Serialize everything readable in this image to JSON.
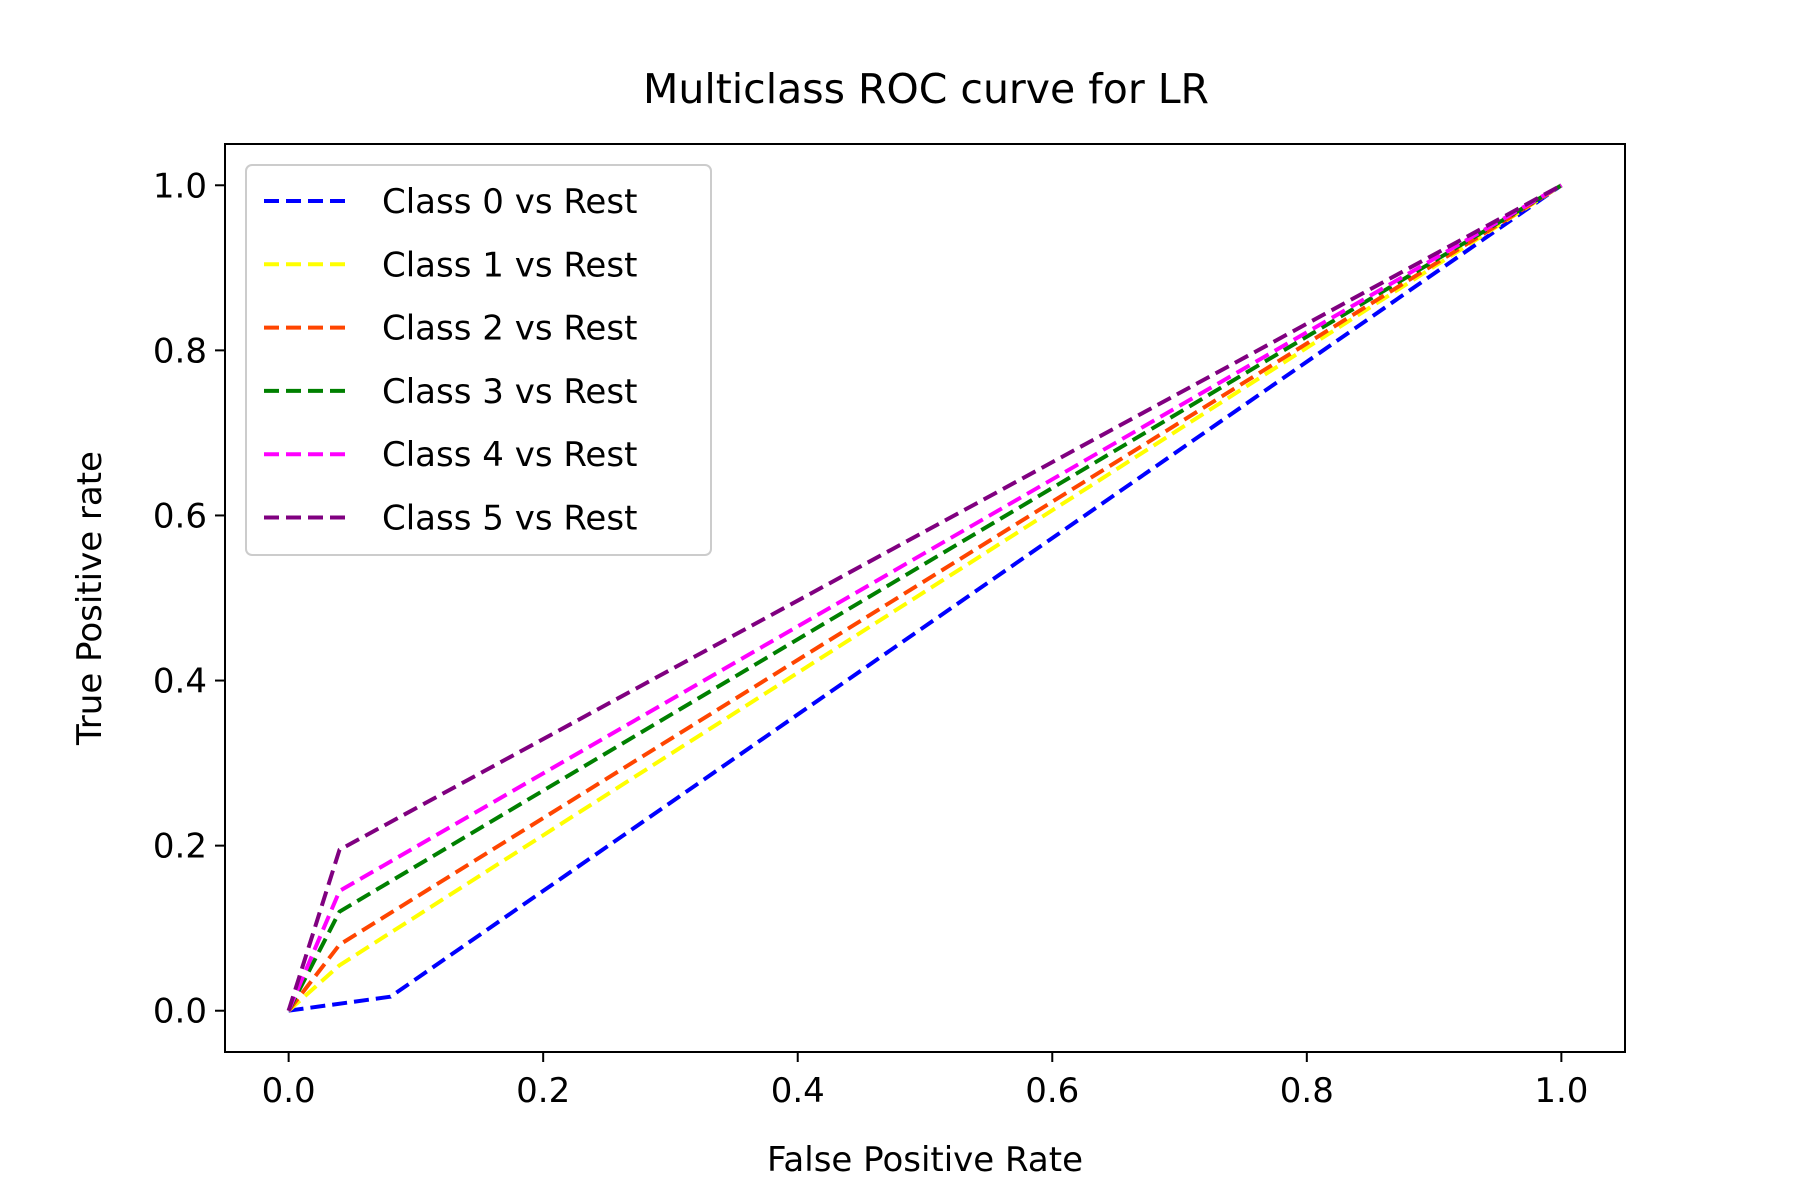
{
  "chart_data": {
    "type": "line",
    "title": "Multiclass ROC curve for LR",
    "xlabel": "False Positive Rate",
    "ylabel": "True Positive rate",
    "xlim": [
      -0.05,
      1.05
    ],
    "ylim": [
      -0.05,
      1.05
    ],
    "x_ticks": [
      0.0,
      0.2,
      0.4,
      0.6,
      0.8,
      1.0
    ],
    "y_ticks": [
      0.0,
      0.2,
      0.4,
      0.6,
      0.8,
      1.0
    ],
    "x_tick_labels": [
      "0.0",
      "0.2",
      "0.4",
      "0.6",
      "0.8",
      "1.0"
    ],
    "y_tick_labels": [
      "0.0",
      "0.2",
      "0.4",
      "0.6",
      "0.8",
      "1.0"
    ],
    "grid": false,
    "legend_position": "upper-left",
    "line_style": "dashed",
    "series": [
      {
        "name": "Class 0 vs Rest",
        "color": "#0000ff",
        "x": [
          0.0,
          0.08,
          1.0
        ],
        "y": [
          0.0,
          0.017,
          1.0
        ]
      },
      {
        "name": "Class 1 vs Rest",
        "color": "#ffff00",
        "x": [
          0.0,
          0.04,
          1.0
        ],
        "y": [
          0.0,
          0.055,
          1.0
        ]
      },
      {
        "name": "Class 2 vs Rest",
        "color": "#ff4500",
        "x": [
          0.0,
          0.04,
          1.0
        ],
        "y": [
          0.0,
          0.08,
          1.0
        ]
      },
      {
        "name": "Class 3 vs Rest",
        "color": "#008000",
        "x": [
          0.0,
          0.04,
          1.0
        ],
        "y": [
          0.0,
          0.12,
          1.0
        ]
      },
      {
        "name": "Class 4 vs Rest",
        "color": "#ff00ff",
        "x": [
          0.0,
          0.04,
          1.0
        ],
        "y": [
          0.0,
          0.145,
          1.0
        ]
      },
      {
        "name": "Class 5 vs Rest",
        "color": "#800080",
        "x": [
          0.0,
          0.04,
          1.0
        ],
        "y": [
          0.0,
          0.195,
          1.0
        ]
      }
    ]
  }
}
